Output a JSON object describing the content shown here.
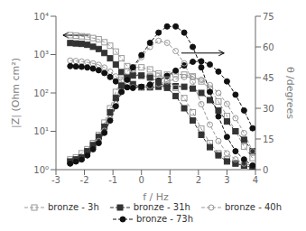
{
  "chart_data": {
    "type": "line",
    "xlabel": "f / Hz",
    "ylabel": "|Z| (Ohm cm²)",
    "y2label": "θ /degrees",
    "log": "y",
    "grid": false,
    "legend": "bottom",
    "xlim": [
      -3,
      4
    ],
    "xticks": [
      -3,
      -2,
      -1,
      0,
      1,
      2,
      3,
      4
    ],
    "ylim": [
      1.0,
      10000
    ],
    "yticks": [
      {
        "value": 1,
        "label": "10⁰"
      },
      {
        "value": 10,
        "label": "10¹"
      },
      {
        "value": 100,
        "label": "10²"
      },
      {
        "value": 1000,
        "label": "10³"
      },
      {
        "value": 10000,
        "label": "10⁴"
      }
    ],
    "y2lim": [
      0,
      75
    ],
    "y2ticks": [
      0,
      15,
      30,
      45,
      60,
      75
    ],
    "x": [
      -2.5,
      -2.3,
      -2.1,
      -1.9,
      -1.7,
      -1.5,
      -1.3,
      -1.1,
      -0.9,
      -0.7,
      -0.5,
      -0.3,
      0.0,
      0.3,
      0.6,
      0.9,
      1.2,
      1.5,
      1.8,
      2.1,
      2.4,
      2.7,
      3.0,
      3.3,
      3.6,
      3.9
    ],
    "series": [
      {
        "name": "bronze - 3h",
        "color": "#999999",
        "marker": "open_square",
        "line_style": "dashed",
        "values": [
          3200,
          3100,
          3000,
          2900,
          2700,
          2500,
          2100,
          1700,
          1200,
          800,
          500,
          340,
          280,
          270,
          280,
          300,
          310,
          300,
          270,
          200,
          130,
          60,
          25,
          10,
          4,
          2
        ]
      },
      {
        "name": "bronze - 31h",
        "color": "#333333",
        "marker": "square",
        "line_style": "dashed",
        "values": [
          2000,
          1950,
          1900,
          1800,
          1600,
          1400,
          1100,
          800,
          550,
          350,
          230,
          170,
          140,
          140,
          145,
          150,
          150,
          145,
          130,
          100,
          65,
          35,
          18,
          10,
          6,
          3
        ]
      },
      {
        "name": "bronze - 40h",
        "color": "#999999",
        "marker": "open_circle",
        "line_style": "dashed",
        "values": [
          700,
          680,
          660,
          630,
          590,
          540,
          460,
          360,
          270,
          200,
          160,
          140,
          140,
          150,
          170,
          200,
          230,
          260,
          260,
          220,
          160,
          100,
          52,
          22,
          9,
          3
        ]
      },
      {
        "name": "bronze - 73h",
        "color": "#111111",
        "marker": "circle",
        "line_style": "dashed",
        "values": [
          500,
          490,
          480,
          460,
          430,
          390,
          330,
          260,
          200,
          160,
          140,
          135,
          145,
          165,
          210,
          280,
          380,
          520,
          650,
          670,
          550,
          360,
          200,
          90,
          35,
          12
        ]
      },
      {
        "name": "bronze - 3h",
        "color": "#999999",
        "marker": "open_square",
        "line_style": "dashed",
        "axis": "y2",
        "values": [
          5,
          6,
          8,
          10,
          13,
          17,
          23,
          30,
          38,
          44,
          48,
          50,
          50,
          49,
          47,
          44,
          40,
          35,
          28,
          20,
          13,
          8,
          5,
          3,
          2,
          1
        ]
      },
      {
        "name": "bronze - 31h",
        "color": "#333333",
        "marker": "square",
        "line_style": "dashed",
        "axis": "y2",
        "values": [
          4,
          5,
          6,
          9,
          12,
          16,
          21,
          28,
          35,
          41,
          45,
          46,
          46,
          45,
          43,
          40,
          36,
          30,
          24,
          17,
          11,
          7,
          4,
          3,
          2,
          1
        ]
      },
      {
        "name": "bronze - 40h",
        "color": "#999999",
        "marker": "open_circle",
        "line_style": "dashed",
        "axis": "y2",
        "values": [
          3,
          4,
          5,
          7,
          10,
          14,
          19,
          25,
          32,
          38,
          44,
          49,
          55,
          60,
          63,
          62,
          58,
          52,
          43,
          32,
          22,
          14,
          8,
          5,
          3,
          2
        ]
      },
      {
        "name": "bronze - 73h",
        "color": "#111111",
        "marker": "circle",
        "line_style": "dashed",
        "axis": "y2",
        "values": [
          3,
          4,
          5,
          7,
          10,
          13,
          18,
          24,
          31,
          38,
          44,
          50,
          56,
          62,
          67,
          70,
          70,
          67,
          60,
          50,
          38,
          26,
          16,
          9,
          5,
          2
        ]
      }
    ],
    "arrows": [
      {
        "x_start": -1.85,
        "x_end": -2.75,
        "y": 3200,
        "axis": "y"
      },
      {
        "x_start": 1.4,
        "x_end": 2.9,
        "y": 57,
        "axis": "y2"
      }
    ]
  }
}
